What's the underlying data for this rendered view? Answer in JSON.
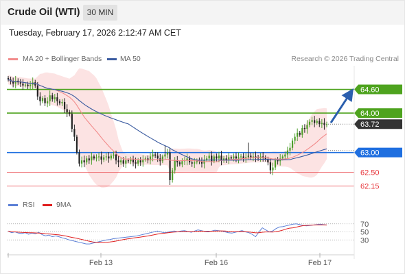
{
  "header": {
    "title": "Crude Oil (WTI)",
    "timeframe": "30 MIN",
    "datetime": "Tuesday, February 17, 2026 2:12:47 AM CET"
  },
  "legend": {
    "ma20_label": "MA 20 + Bollinger Bands",
    "ma50_label": "MA 50",
    "ma20_color": "#f28b8b",
    "ma50_color": "#3a5ba0",
    "credit": "Research © 2026 Trading Central"
  },
  "rsi_legend": {
    "rsi_label": "RSI",
    "ma9_label": "9MA",
    "rsi_color": "#5b7fd6",
    "ma9_color": "#e01e1e"
  },
  "chart_data": {
    "type": "candlestick",
    "ylim": [
      61.9,
      65.2
    ],
    "x_ticks": [
      "Feb 13",
      "Feb 16",
      "Feb 17"
    ],
    "levels": [
      {
        "value": 64.6,
        "label": "64.60",
        "kind": "resistance",
        "color": "#4ea31e"
      },
      {
        "value": 64.0,
        "label": "64.00",
        "kind": "resistance",
        "color": "#4ea31e"
      },
      {
        "value": 63.72,
        "label": "63.72",
        "kind": "last-price",
        "color": "#333333"
      },
      {
        "value": 63.0,
        "label": "63.00",
        "kind": "pivot",
        "color": "#1f6fe0"
      },
      {
        "value": 62.5,
        "label": "62.50",
        "kind": "support",
        "color": "#e8353b"
      },
      {
        "value": 62.15,
        "label": "62.15",
        "kind": "support",
        "color": "#e8353b"
      }
    ],
    "close": [
      64.85,
      64.8,
      64.75,
      64.82,
      64.78,
      64.75,
      64.7,
      64.72,
      64.68,
      64.72,
      64.78,
      64.7,
      64.42,
      64.3,
      64.38,
      64.25,
      64.3,
      64.45,
      64.35,
      64.4,
      64.3,
      64.25,
      64.28,
      64.1,
      64.02,
      63.98,
      63.6,
      63.4,
      63.0,
      62.72,
      62.8,
      62.75,
      62.85,
      62.8,
      62.9,
      62.85,
      62.88,
      62.9,
      62.82,
      62.88,
      62.9,
      62.85,
      62.92,
      62.95,
      62.8,
      62.75,
      62.8,
      62.72,
      62.8,
      62.78,
      62.82,
      62.75,
      62.72,
      62.8,
      62.75,
      62.82,
      62.85,
      62.8,
      62.9,
      62.95,
      62.92,
      62.85,
      62.78,
      62.9,
      62.95,
      63.0,
      62.3,
      62.55,
      62.8,
      62.75,
      62.7,
      62.78,
      62.8,
      62.85,
      62.75,
      62.72,
      62.75,
      62.8,
      62.78,
      62.72,
      62.82,
      62.85,
      62.92,
      62.78,
      62.9,
      62.85,
      62.92,
      62.8,
      62.85,
      62.82,
      62.88,
      62.85,
      62.9,
      62.85,
      62.88,
      62.9,
      62.85,
      62.88,
      62.92,
      62.88,
      62.9,
      62.88,
      62.85,
      62.9,
      62.88,
      62.82,
      62.75,
      62.55,
      62.62,
      62.8,
      62.78,
      62.85,
      62.9,
      62.95,
      63.05,
      63.12,
      63.3,
      63.4,
      63.5,
      63.45,
      63.62,
      63.6,
      63.7,
      63.78,
      63.82,
      63.75,
      63.8,
      63.72,
      63.75,
      63.7,
      63.72
    ]
  },
  "rsi_data": {
    "ylim": [
      10,
      90
    ],
    "ticks": [
      "70",
      "50",
      "30"
    ],
    "rsi": [
      52,
      48,
      50,
      47,
      46,
      48,
      44,
      47,
      45,
      49,
      43,
      40,
      42,
      38,
      40,
      38,
      35,
      33,
      30,
      28,
      26,
      24,
      22,
      20,
      20,
      22,
      24,
      26,
      28,
      30,
      31,
      33,
      34,
      35,
      36,
      37,
      38,
      39,
      40,
      42,
      44,
      46,
      48,
      50,
      52,
      50,
      48,
      49,
      51,
      52,
      50,
      52,
      53,
      51,
      49,
      52,
      55,
      53,
      51,
      50,
      52,
      54,
      53,
      52,
      50,
      48,
      47,
      49,
      51,
      53,
      50,
      48,
      44,
      38,
      50,
      60,
      55,
      50,
      52,
      58,
      62,
      63,
      65,
      67,
      69,
      70,
      68,
      66,
      65,
      66,
      67,
      68,
      69,
      68,
      67
    ]
  }
}
